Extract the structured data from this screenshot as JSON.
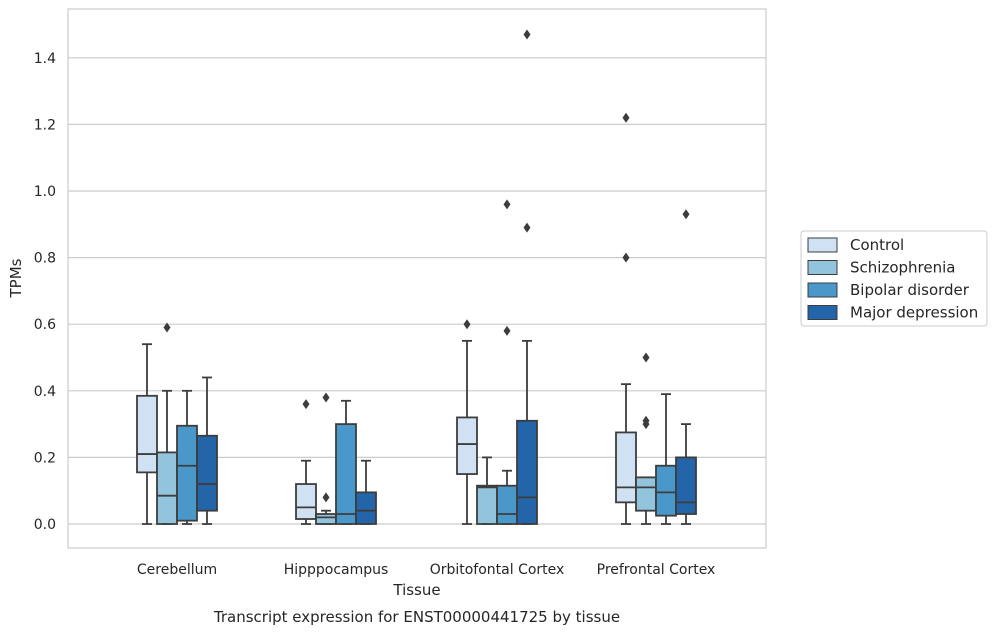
{
  "chart_data": {
    "type": "box",
    "title": "",
    "caption": "Transcript expression for ENST00000441725 by tissue",
    "xlabel": "Tissue",
    "ylabel": "TPMs",
    "ylim": [
      -0.07,
      1.55
    ],
    "yticks": [
      0.0,
      0.2,
      0.4,
      0.6,
      0.8,
      1.0,
      1.2,
      1.4
    ],
    "ytick_labels": [
      "0.0",
      "0.2",
      "0.4",
      "0.6",
      "0.8",
      "1.0",
      "1.2",
      "1.4"
    ],
    "grid": true,
    "legend_position": "right",
    "categories": [
      "Cerebellum",
      "Hipppocampus",
      "Orbitofontal Cortex",
      "Prefrontal Cortex"
    ],
    "series": [
      {
        "name": "Control",
        "color": "#cfe1f2",
        "boxes": [
          {
            "whislo": 0.0,
            "q1": 0.155,
            "med": 0.21,
            "q3": 0.385,
            "whishi": 0.54,
            "fliers": []
          },
          {
            "whislo": 0.0,
            "q1": 0.015,
            "med": 0.05,
            "q3": 0.12,
            "whishi": 0.19,
            "fliers": [
              0.36
            ]
          },
          {
            "whislo": 0.0,
            "q1": 0.15,
            "med": 0.24,
            "q3": 0.32,
            "whishi": 0.55,
            "fliers": [
              0.6
            ]
          },
          {
            "whislo": 0.0,
            "q1": 0.065,
            "med": 0.11,
            "q3": 0.275,
            "whishi": 0.42,
            "fliers": [
              0.8,
              1.22
            ]
          }
        ]
      },
      {
        "name": "Schizophrenia",
        "color": "#93c4de",
        "boxes": [
          {
            "whislo": 0.0,
            "q1": 0.0,
            "med": 0.085,
            "q3": 0.215,
            "whishi": 0.4,
            "fliers": [
              0.59
            ]
          },
          {
            "whislo": 0.0,
            "q1": 0.0,
            "med": 0.02,
            "q3": 0.03,
            "whishi": 0.04,
            "fliers": [
              0.08,
              0.38
            ]
          },
          {
            "whislo": 0.0,
            "q1": 0.0,
            "med": 0.11,
            "q3": 0.115,
            "whishi": 0.2,
            "fliers": []
          },
          {
            "whislo": 0.0,
            "q1": 0.04,
            "med": 0.11,
            "q3": 0.14,
            "whishi": 0.14,
            "fliers": [
              0.3,
              0.31,
              0.5
            ]
          }
        ]
      },
      {
        "name": "Bipolar disorder",
        "color": "#4a98c9",
        "boxes": [
          {
            "whislo": 0.0,
            "q1": 0.01,
            "med": 0.175,
            "q3": 0.295,
            "whishi": 0.4,
            "fliers": []
          },
          {
            "whislo": 0.0,
            "q1": 0.0,
            "med": 0.03,
            "q3": 0.3,
            "whishi": 0.37,
            "fliers": []
          },
          {
            "whislo": 0.0,
            "q1": 0.0,
            "med": 0.03,
            "q3": 0.115,
            "whishi": 0.16,
            "fliers": [
              0.58,
              0.96
            ]
          },
          {
            "whislo": 0.0,
            "q1": 0.025,
            "med": 0.095,
            "q3": 0.175,
            "whishi": 0.39,
            "fliers": []
          }
        ]
      },
      {
        "name": "Major depression",
        "color": "#2464a8",
        "boxes": [
          {
            "whislo": 0.0,
            "q1": 0.04,
            "med": 0.12,
            "q3": 0.265,
            "whishi": 0.44,
            "fliers": []
          },
          {
            "whislo": 0.0,
            "q1": 0.0,
            "med": 0.04,
            "q3": 0.095,
            "whishi": 0.19,
            "fliers": []
          },
          {
            "whislo": 0.0,
            "q1": 0.0,
            "med": 0.08,
            "q3": 0.31,
            "whishi": 0.55,
            "fliers": [
              0.89,
              1.47
            ]
          },
          {
            "whislo": 0.0,
            "q1": 0.03,
            "med": 0.065,
            "q3": 0.2,
            "whishi": 0.3,
            "fliers": [
              0.93
            ]
          }
        ]
      }
    ]
  }
}
